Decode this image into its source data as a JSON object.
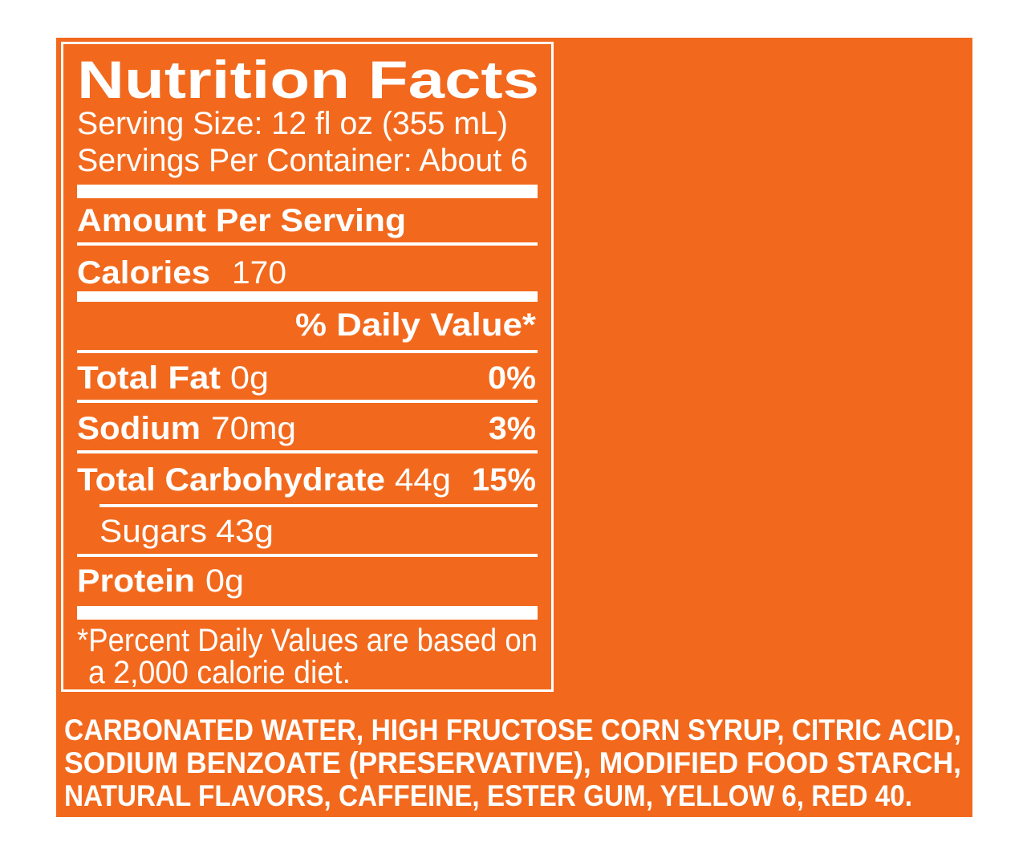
{
  "header": {
    "title": "Nutrition Facts",
    "serving_size": "Serving Size: 12 fl oz (355 mL)",
    "servings_per_container": "Servings Per Container: About 6"
  },
  "amount_per_serving": "Amount Per Serving",
  "calories": {
    "label": "Calories",
    "value": "170"
  },
  "daily_value_header": "% Daily Value*",
  "nutrients": [
    {
      "name": "Total Fat",
      "amount": "0g",
      "daily_value": "0%"
    },
    {
      "name": "Sodium",
      "amount": "70mg",
      "daily_value": "3%"
    },
    {
      "name": "Total Carbohydrate",
      "amount": "44g",
      "daily_value": "15%"
    },
    {
      "name": "Sugars",
      "amount": "43g"
    },
    {
      "name": "Protein",
      "amount": "0g"
    }
  ],
  "footnote": [
    "*Percent Daily Values are based on",
    "a 2,000 calorie diet."
  ],
  "ingredients": [
    "CARBONATED WATER, HIGH FRUCTOSE CORN SYRUP, CITRIC ACID,",
    "SODIUM BENZOATE (PRESERVATIVE), MODIFIED FOOD STARCH,",
    "NATURAL FLAVORS, CAFFEINE, ESTER GUM, YELLOW 6, RED 40."
  ]
}
